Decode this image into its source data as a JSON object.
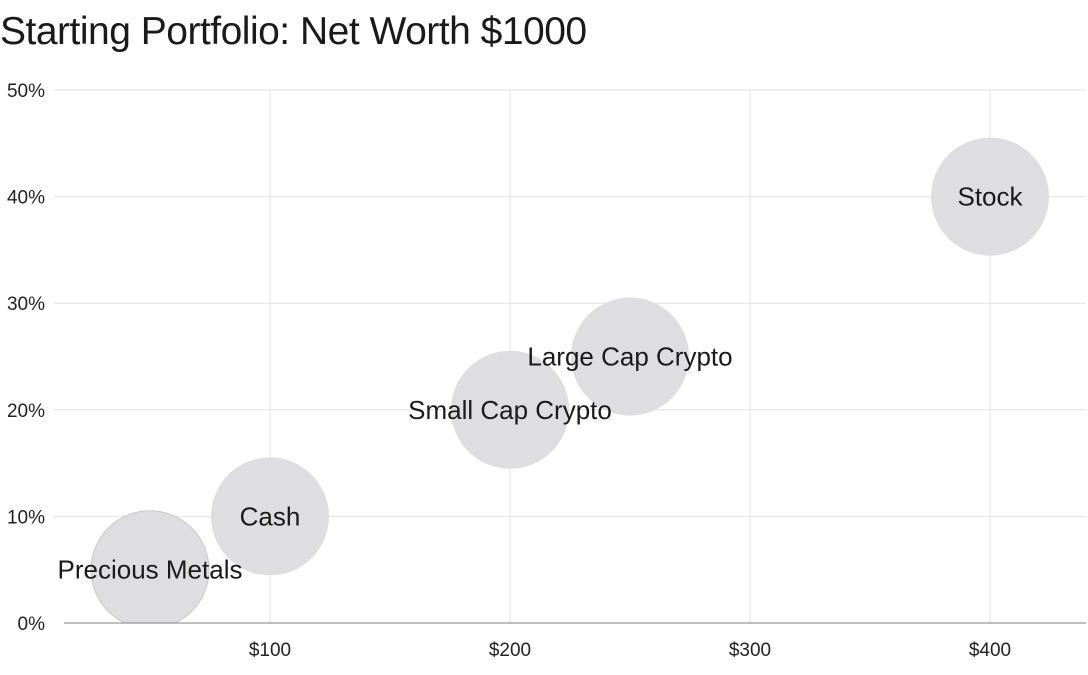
{
  "chart_data": {
    "type": "scatter",
    "title": "Starting Portfolio: Net Worth $1000",
    "xlabel": "",
    "ylabel": "",
    "xlim": [
      -35,
      440
    ],
    "ylim": [
      0,
      50
    ],
    "x_ticks": [
      {
        "value": 100,
        "label": "$100"
      },
      {
        "value": 200,
        "label": "$200"
      },
      {
        "value": 300,
        "label": "$300"
      },
      {
        "value": 400,
        "label": "$400"
      }
    ],
    "y_ticks": [
      {
        "value": 0,
        "label": "0%"
      },
      {
        "value": 10,
        "label": "10%"
      },
      {
        "value": 20,
        "label": "20%"
      },
      {
        "value": 30,
        "label": "30%"
      },
      {
        "value": 40,
        "label": "40%"
      },
      {
        "value": 50,
        "label": "50%"
      }
    ],
    "grid": true,
    "bubble_color": "#dedee0",
    "grid_color": "#e2e2e2",
    "axis_color": "#999999",
    "points": [
      {
        "label": "Precious Metals",
        "x": 50,
        "y": 5
      },
      {
        "label": "Cash",
        "x": 100,
        "y": 10
      },
      {
        "label": "Small Cap Crypto",
        "x": 200,
        "y": 20
      },
      {
        "label": "Large Cap Crypto",
        "x": 250,
        "y": 25
      },
      {
        "label": "Stock",
        "x": 400,
        "y": 40
      }
    ]
  }
}
